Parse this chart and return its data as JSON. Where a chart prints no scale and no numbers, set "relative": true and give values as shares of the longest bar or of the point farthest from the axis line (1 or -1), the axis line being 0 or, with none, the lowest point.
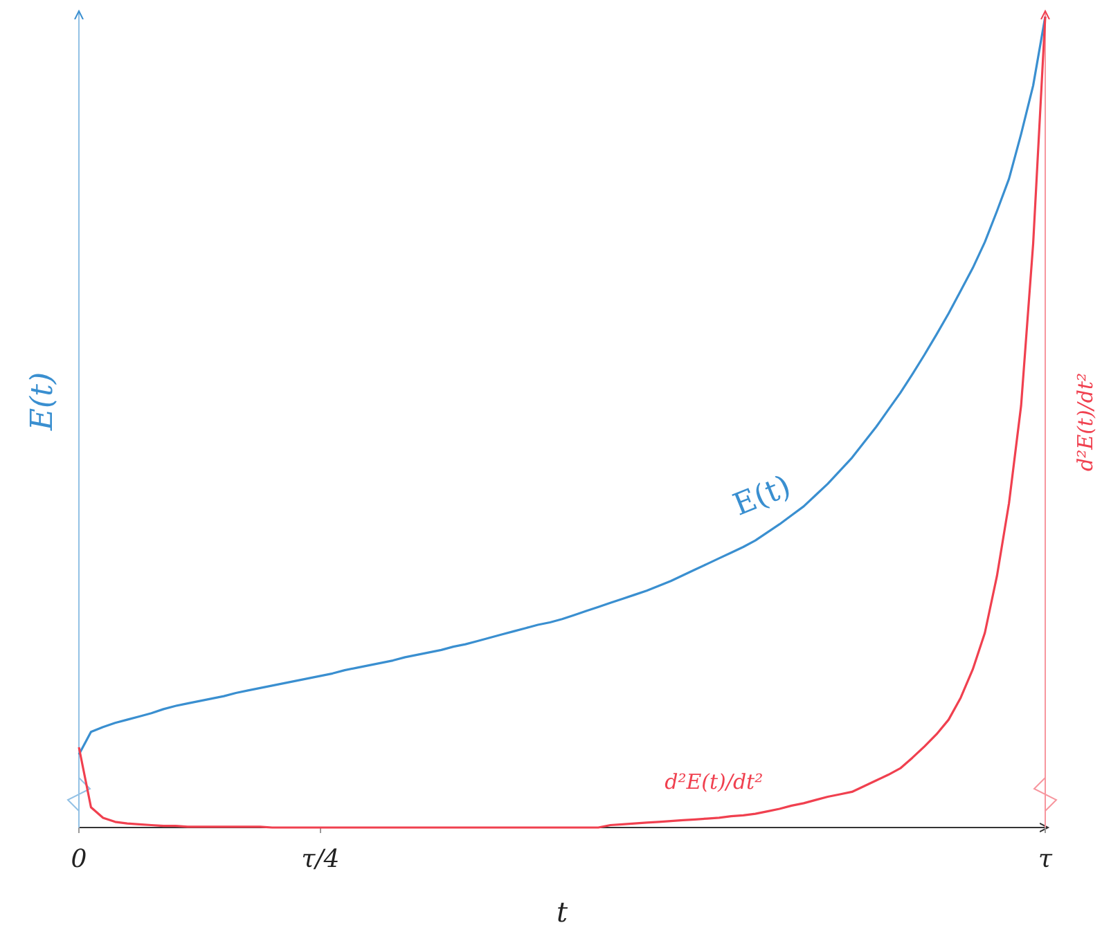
{
  "chart_data": {
    "type": "line",
    "relative": true,
    "xlabel": "t",
    "ylabel": "E(t)",
    "y2label": "d²E(t)/dt²",
    "grid": false,
    "marker": "none",
    "line_style": "solid",
    "categories": [
      "0",
      null,
      null,
      null,
      null,
      null,
      null,
      null,
      null,
      null,
      null,
      null,
      null,
      null,
      null,
      null,
      null,
      null,
      null,
      null,
      "τ/4",
      null,
      null,
      null,
      null,
      null,
      null,
      null,
      null,
      null,
      null,
      null,
      null,
      null,
      null,
      null,
      null,
      null,
      null,
      null,
      null,
      null,
      null,
      null,
      null,
      null,
      null,
      null,
      null,
      null,
      null,
      null,
      null,
      null,
      null,
      null,
      null,
      null,
      null,
      null,
      null,
      null,
      null,
      null,
      null,
      null,
      null,
      null,
      null,
      null,
      null,
      null,
      null,
      null,
      null,
      null,
      null,
      null,
      null,
      null,
      "τ"
    ],
    "series": [
      {
        "name": "E(t)",
        "color": "#3a8fd0",
        "values": [
          0.09,
          0.118,
          0.124,
          0.129,
          0.133,
          0.137,
          0.141,
          0.146,
          0.15,
          0.153,
          0.156,
          0.159,
          0.162,
          0.166,
          0.169,
          0.172,
          0.175,
          0.178,
          0.181,
          0.184,
          0.187,
          0.19,
          0.194,
          0.197,
          0.2,
          0.203,
          0.206,
          0.21,
          0.213,
          0.216,
          0.219,
          0.223,
          0.226,
          0.23,
          0.234,
          0.238,
          0.242,
          0.246,
          0.25,
          0.253,
          0.257,
          0.262,
          0.267,
          0.272,
          0.277,
          0.282,
          0.287,
          0.292,
          0.298,
          0.304,
          0.311,
          0.318,
          0.325,
          0.332,
          0.339,
          0.346,
          0.354,
          0.364,
          0.374,
          0.385,
          0.396,
          0.41,
          0.424,
          0.44,
          0.456,
          0.475,
          0.494,
          0.515,
          0.536,
          0.559,
          0.583,
          0.608,
          0.634,
          0.662,
          0.69,
          0.722,
          0.76,
          0.8,
          0.855,
          0.915,
          1
        ]
      },
      {
        "name": "d²E(t)/dt²",
        "color": "#f0404f",
        "values": [
          0.099,
          0.025,
          0.012,
          0.007,
          0.005,
          0.004,
          0.003,
          0.002,
          0.002,
          0.001,
          0.001,
          0.001,
          0.001,
          0.001,
          0.001,
          0.001,
          0,
          0,
          0,
          0,
          0,
          0,
          0,
          0,
          0,
          0,
          0,
          0,
          0,
          0,
          0,
          0,
          0,
          0,
          0,
          0,
          0,
          0,
          0,
          0,
          0,
          0,
          0,
          0,
          0.003,
          0.004,
          0.005,
          0.006,
          0.007,
          0.008,
          0.009,
          0.01,
          0.011,
          0.012,
          0.014,
          0.015,
          0.017,
          0.02,
          0.023,
          0.027,
          0.03,
          0.034,
          0.038,
          0.041,
          0.044,
          0.051,
          0.058,
          0.065,
          0.073,
          0.086,
          0.1,
          0.115,
          0.133,
          0.16,
          0.195,
          0.24,
          0.31,
          0.4,
          0.52,
          0.72,
          1
        ]
      }
    ]
  }
}
